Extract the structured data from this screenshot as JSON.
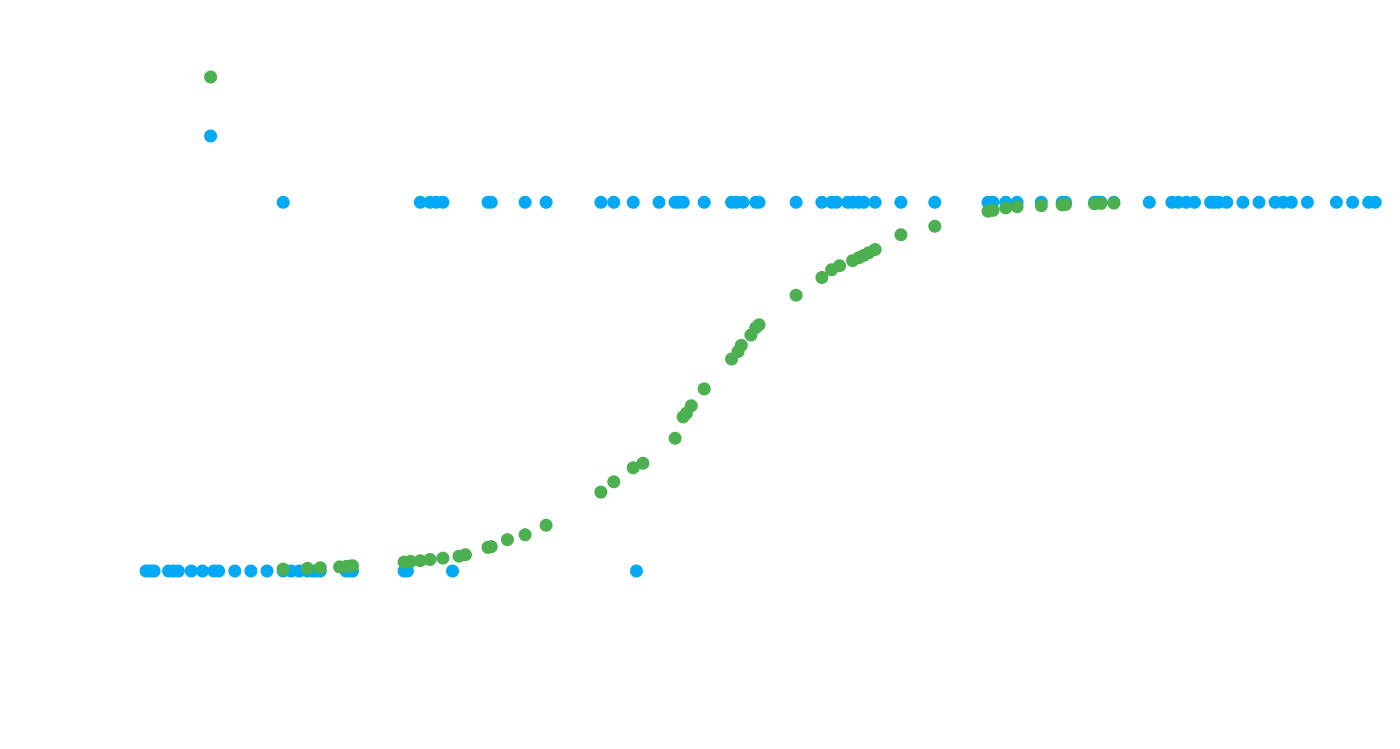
{
  "chart_data": {
    "type": "scatter",
    "title": "",
    "xlabel": "",
    "ylabel": "",
    "grid": false,
    "legend": "none",
    "xlim": [
      -3.85,
      3.85
    ],
    "ylim": [
      -0.35,
      1.5
    ],
    "series": [
      {
        "color": "#03A9F4",
        "points": [
          [
            -3.8,
            0
          ],
          [
            -3.79,
            0
          ],
          [
            -3.77,
            0
          ],
          [
            -3.75,
            0
          ],
          [
            -3.66,
            0
          ],
          [
            -3.63,
            0
          ],
          [
            -3.6,
            0
          ],
          [
            -3.52,
            0
          ],
          [
            -3.45,
            0
          ],
          [
            -3.38,
            0
          ],
          [
            -3.35,
            0
          ],
          [
            -3.25,
            0
          ],
          [
            -3.15,
            0
          ],
          [
            -3.05,
            0
          ],
          [
            -2.95,
            0
          ],
          [
            -2.9,
            0
          ],
          [
            -2.85,
            0
          ],
          [
            -2.8,
            0
          ],
          [
            -2.77,
            0
          ],
          [
            -2.75,
            0
          ],
          [
            -2.72,
            0
          ],
          [
            -2.56,
            0
          ],
          [
            -2.54,
            0
          ],
          [
            -2.52,
            0
          ],
          [
            -2.2,
            0
          ],
          [
            -2.18,
            0
          ],
          [
            -1.9,
            0
          ],
          [
            -0.76,
            0
          ],
          [
            -3.4,
            1.18
          ],
          [
            -2.95,
            1
          ],
          [
            -2.1,
            1
          ],
          [
            -2.04,
            1
          ],
          [
            -2.0,
            1
          ],
          [
            -1.96,
            1
          ],
          [
            -1.68,
            1
          ],
          [
            -1.66,
            1
          ],
          [
            -1.45,
            1
          ],
          [
            -1.32,
            1
          ],
          [
            -0.98,
            1
          ],
          [
            -0.9,
            1
          ],
          [
            -0.78,
            1
          ],
          [
            -0.62,
            1
          ],
          [
            -0.52,
            1
          ],
          [
            -0.5,
            1
          ],
          [
            -0.47,
            1
          ],
          [
            -0.34,
            1
          ],
          [
            -0.17,
            1
          ],
          [
            -0.14,
            1
          ],
          [
            -0.1,
            1
          ],
          [
            -0.02,
            1
          ],
          [
            0.0,
            1
          ],
          [
            0.23,
            1
          ],
          [
            0.39,
            1
          ],
          [
            0.45,
            1
          ],
          [
            0.48,
            1
          ],
          [
            0.55,
            1
          ],
          [
            0.58,
            1
          ],
          [
            0.62,
            1
          ],
          [
            0.65,
            1
          ],
          [
            0.72,
            1
          ],
          [
            0.88,
            1
          ],
          [
            1.09,
            1
          ],
          [
            1.42,
            1
          ],
          [
            1.45,
            1
          ],
          [
            1.53,
            1
          ],
          [
            1.6,
            1
          ],
          [
            1.75,
            1
          ],
          [
            1.88,
            1
          ],
          [
            1.9,
            1
          ],
          [
            2.08,
            1
          ],
          [
            2.1,
            1
          ],
          [
            2.12,
            1
          ],
          [
            2.2,
            1
          ],
          [
            2.42,
            1
          ],
          [
            2.56,
            1
          ],
          [
            2.6,
            1
          ],
          [
            2.65,
            1
          ],
          [
            2.7,
            1
          ],
          [
            2.8,
            1
          ],
          [
            2.82,
            1
          ],
          [
            2.85,
            1
          ],
          [
            2.9,
            1
          ],
          [
            3.0,
            1
          ],
          [
            3.1,
            1
          ],
          [
            3.2,
            1
          ],
          [
            3.25,
            1
          ],
          [
            3.3,
            1
          ],
          [
            3.4,
            1
          ],
          [
            3.58,
            1
          ],
          [
            3.68,
            1
          ],
          [
            3.78,
            1
          ],
          [
            3.82,
            1
          ]
        ]
      },
      {
        "color": "#4CAF50",
        "points": [
          [
            -3.4,
            1.34
          ],
          [
            -2.95,
            0.005
          ],
          [
            -2.8,
            0.007
          ],
          [
            -2.72,
            0.009
          ],
          [
            -2.6,
            0.011
          ],
          [
            -2.56,
            0.012
          ],
          [
            -2.54,
            0.013
          ],
          [
            -2.52,
            0.014
          ],
          [
            -2.2,
            0.024
          ],
          [
            -2.16,
            0.026
          ],
          [
            -2.1,
            0.028
          ],
          [
            -2.04,
            0.031
          ],
          [
            -1.96,
            0.035
          ],
          [
            -1.86,
            0.04
          ],
          [
            -1.82,
            0.044
          ],
          [
            -1.68,
            0.064
          ],
          [
            -1.66,
            0.066
          ],
          [
            -1.56,
            0.085
          ],
          [
            -1.45,
            0.098
          ],
          [
            -1.32,
            0.124
          ],
          [
            -0.98,
            0.214
          ],
          [
            -0.9,
            0.242
          ],
          [
            -0.78,
            0.28
          ],
          [
            -0.72,
            0.292
          ],
          [
            -0.52,
            0.36
          ],
          [
            -0.47,
            0.418
          ],
          [
            -0.45,
            0.428
          ],
          [
            -0.42,
            0.448
          ],
          [
            -0.34,
            0.494
          ],
          [
            -0.17,
            0.575
          ],
          [
            -0.13,
            0.595
          ],
          [
            -0.11,
            0.612
          ],
          [
            -0.05,
            0.64
          ],
          [
            -0.02,
            0.66
          ],
          [
            0.0,
            0.668
          ],
          [
            0.23,
            0.748
          ],
          [
            0.39,
            0.796
          ],
          [
            0.45,
            0.817
          ],
          [
            0.5,
            0.828
          ],
          [
            0.58,
            0.842
          ],
          [
            0.62,
            0.85
          ],
          [
            0.65,
            0.856
          ],
          [
            0.68,
            0.863
          ],
          [
            0.72,
            0.872
          ],
          [
            0.88,
            0.912
          ],
          [
            1.09,
            0.935
          ],
          [
            1.42,
            0.976
          ],
          [
            1.45,
            0.978
          ],
          [
            1.53,
            0.985
          ],
          [
            1.6,
            0.988
          ],
          [
            1.75,
            0.991
          ],
          [
            1.88,
            0.993
          ],
          [
            1.9,
            0.994
          ],
          [
            2.08,
            0.996
          ],
          [
            2.12,
            0.997
          ],
          [
            2.2,
            0.998
          ]
        ]
      }
    ]
  }
}
